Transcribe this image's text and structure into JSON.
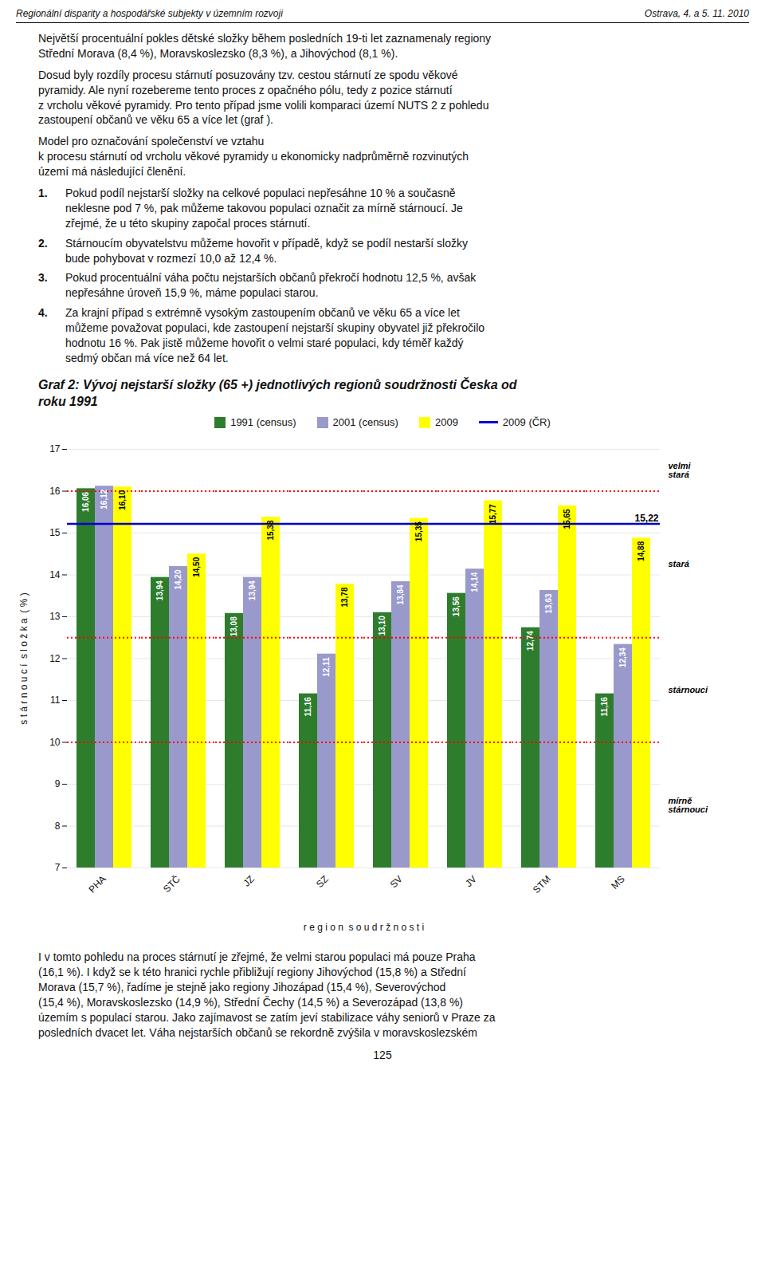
{
  "page": {
    "header": [
      "Regionální disparity a hospodářské subjekty v územním rozvoji",
      "Ostrava, 4. a 5. 11. 2010"
    ],
    "paragraphs": [
      "Největší procentuální pokles dětské složky během posledních 19-ti let zaznamenaly regiony\nStřední Morava (8,4 %), Moravskoslezsko (8,3 %), a Jihovýchod (8,1 %).",
      "Dosud byly rozdíly procesu stárnutí posuzovány tzv. cestou stárnutí ze spodu věkové\npyramidy. Ale nyní rozebereme tento proces z opačného pólu, tedy z pozice stárnutí\nz vrcholu věkové pyramidy. Pro tento případ jsme volili komparaci území NUTS 2 z pohledu\nzastoupení občanů ve věku 65 a více let (graf ).",
      "Model pro označování společenství ve vztahu\nk procesu stárnutí od vrcholu věkové pyramidy u ekonomicky nadprůměrně rozvinutých\núzemí má následující členění."
    ],
    "list": [
      {
        "label": "1.",
        "text": "Pokud podíl nejstarší složky na celkové populaci nepřesáhne 10 % a současně\nneklesne pod 7 %, pak můžeme takovou populaci označit za mírně stárnoucí. Je\nzřejmé, že u této skupiny započal proces stárnutí."
      },
      {
        "label": "2.",
        "text": "Stárnoucím obyvatelstvu můžeme hovořit v případě, když se podíl nestarší složky\nbude pohybovat v rozmezí 10,0 až 12,4 %."
      },
      {
        "label": "3.",
        "text": "Pokud procentuální váha počtu nejstarších občanů překročí hodnotu 12,5 %, avšak\nnepřesáhne úroveň 15,9 %, máme populaci starou."
      },
      {
        "label": "4.",
        "text": "Za krajní případ s extrémně vysokým zastoupením občanů ve věku 65 a více let\nmůžeme považovat populaci, kde zastoupení nejstarší skupiny obyvatel již překročilo\nhodnotu 16 %. Pak jistě můžeme hovořit o velmi staré populaci, kdy téměř každý\nsedmý občan má více než 64 let."
      }
    ],
    "text_below": "I v tomto pohledu na proces stárnutí je zřejmé, že velmi starou populaci má pouze Praha\n(16,1 %). I když se k této hranici rychle přibližují regiony Jihovýchod (15,8 %) a Střední\nMorava (15,7 %), řadíme je stejně jako regiony Jihozápad (15,4 %), Severovýchod\n(15,4 %), Moravskoslezsko (14,9 %), Střední Čechy (14,5 %) a Severozápad (13,8 %)\núzemím s populací starou. Jako zajímavost se zatím jeví stabilizace váhy seniorů v Praze za\nposledních dvacet let. Váha nejstarších občanů se rekordně zvýšila v moravskoslezském",
    "page_number": "125"
  },
  "chart_data": {
    "type": "bar",
    "title": "Graf 2: Vývoj nejstarší složky (65 +) jednotlivých regionů soudržnosti Česka od\nroku 1991",
    "xlabel": "r e g i o n  s o u d r ž n o s t i",
    "ylabel": "s t á r n o u c í  s l o ž k a  ( % )",
    "categories": [
      "PHA",
      "STČ",
      "JZ",
      "SZ",
      "SV",
      "JV",
      "STM",
      "MS"
    ],
    "series": [
      {
        "name": "1991 (census)",
        "color": "#2d7d2d",
        "values": [
          16.06,
          13.94,
          13.08,
          11.16,
          13.1,
          13.56,
          12.74,
          11.16
        ],
        "value_labels": [
          "16,06",
          "13,94",
          "13,08",
          "11,16",
          "13,10",
          "13,56",
          "12,74",
          "11,16"
        ]
      },
      {
        "name": "2001 (census)",
        "color": "#9999cc",
        "values": [
          16.12,
          14.2,
          13.94,
          12.11,
          13.84,
          14.14,
          13.63,
          12.34
        ],
        "value_labels": [
          "16,12",
          "14,20",
          "13,94",
          "12,11",
          "13,84",
          "14,14",
          "13,63",
          "12,34"
        ]
      },
      {
        "name": "2009",
        "color": "#ffff00",
        "values": [
          16.1,
          14.5,
          15.38,
          13.78,
          15.35,
          15.77,
          15.65,
          14.88
        ],
        "value_labels": [
          "16,10",
          "14,50",
          "15,38",
          "13,78",
          "15,35",
          "15,77",
          "15,65",
          "14,88"
        ]
      }
    ],
    "lines": [
      {
        "name": "2009 (ČR)",
        "y": 15.22,
        "label": "15,22",
        "color": "#0000cc",
        "line_style": "solid"
      }
    ],
    "reference_lines": [
      {
        "y": 10.0,
        "color": "red",
        "line_style": "dotted"
      },
      {
        "y": 12.5,
        "color": "red",
        "line_style": "dotted"
      },
      {
        "y": 16.0,
        "color": "red",
        "line_style": "dotted"
      }
    ],
    "annotations": [
      {
        "text": "velmi\nstará",
        "y": 16.5
      },
      {
        "text": "stará",
        "y": 14.25
      },
      {
        "text": "stárnouci",
        "y": 11.25
      },
      {
        "text": "mírně\nstárnouci",
        "y": 8.5
      }
    ],
    "ylim": [
      7,
      17
    ],
    "yticks": [
      7,
      8,
      9,
      10,
      11,
      12,
      13,
      14,
      15,
      16,
      17
    ],
    "grid": true,
    "legend": "top",
    "data_labels": true
  }
}
